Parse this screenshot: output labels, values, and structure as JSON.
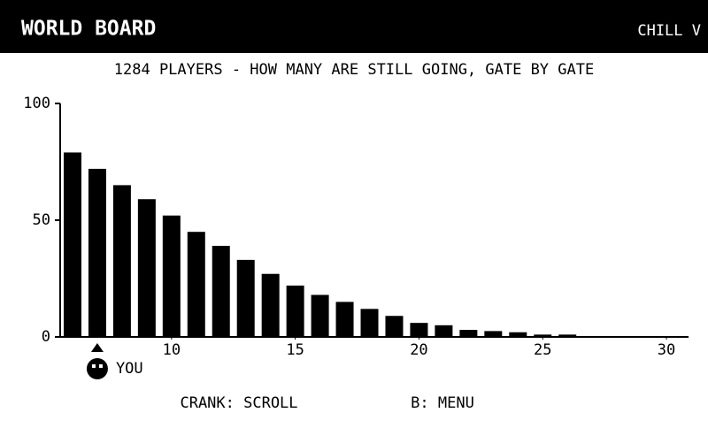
{
  "header": {
    "title": "WORLD BOARD",
    "mode": "CHILL V"
  },
  "chart_data": {
    "type": "bar",
    "title": "1284 PLAYERS - HOW MANY ARE STILL GOING, GATE BY GATE",
    "x": [
      6,
      7,
      8,
      9,
      10,
      11,
      12,
      13,
      14,
      15,
      16,
      17,
      18,
      19,
      20,
      21,
      22,
      23,
      24,
      25,
      26
    ],
    "values": [
      79,
      72,
      65,
      59,
      52,
      45,
      39,
      33,
      27,
      22,
      18,
      15,
      12,
      9,
      6,
      5,
      3,
      2.5,
      2,
      1,
      1
    ],
    "color": "#000000",
    "xlim": [
      5.5,
      31
    ],
    "ylim": [
      0,
      100
    ],
    "xticks": [
      10,
      15,
      20,
      25,
      30
    ],
    "yticks": [
      0,
      50,
      100
    ],
    "marker": {
      "x": 7,
      "label": "YOU"
    }
  },
  "footer": {
    "hints": [
      "CRANK: SCROLL",
      "B: MENU"
    ]
  }
}
